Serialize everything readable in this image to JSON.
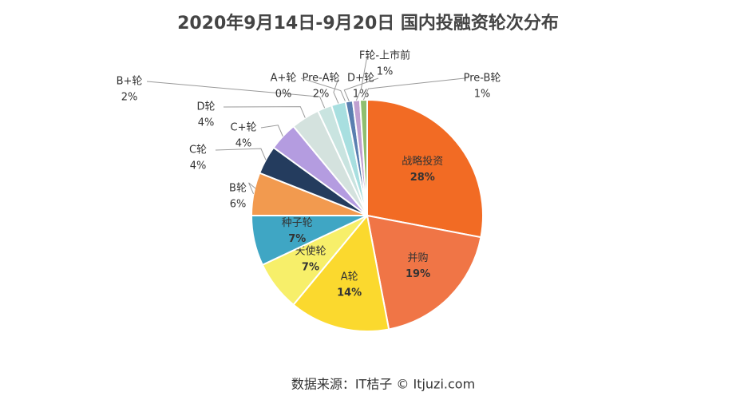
{
  "chart_data": {
    "type": "pie",
    "title": "2020年9月14日-9月20日 国内投融资轮次分布",
    "categories": [
      "战略投资",
      "并购",
      "A轮",
      "天使轮",
      "种子轮",
      "B轮",
      "C轮",
      "C+轮",
      "D轮",
      "B+轮",
      "Pre-A轮",
      "A+轮",
      "D+轮",
      "F轮-上市前",
      "Pre-B轮"
    ],
    "values": [
      28,
      19,
      14,
      7,
      7,
      6,
      4,
      4,
      4,
      2,
      2,
      0,
      1,
      1,
      1
    ],
    "value_labels": [
      "28%",
      "19%",
      "14%",
      "7%",
      "7%",
      "6%",
      "4%",
      "4%",
      "4%",
      "2%",
      "2%",
      "0%",
      "1%",
      "1%",
      "1%"
    ],
    "colors": [
      "#f26b24",
      "#f07546",
      "#fbd92e",
      "#f7ef6a",
      "#3fa6c4",
      "#f29a4f",
      "#243c5e",
      "#b49ce0",
      "#d4e2de",
      "#c9e4e0",
      "#a8dfe0",
      "#8b3a1a",
      "#5a7fb0",
      "#c0a0d0",
      "#8fbf6f"
    ],
    "source": "数据来源：IT桔子 © Itjuzi.com"
  }
}
